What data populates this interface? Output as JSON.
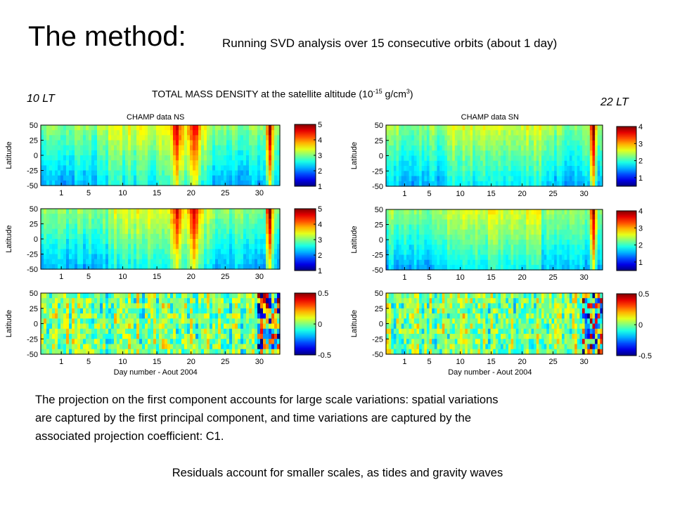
{
  "slide": {
    "title": "The method:",
    "subtitle": "Running SVD analysis over 15 consecutive orbits (about 1 day)",
    "left_label": "10 LT",
    "right_label": "22 LT",
    "center_title_main": "TOTAL MASS DENSITY at the satellite altitude (10",
    "center_title_exp": "-15",
    "center_title_unit": " g/cm",
    "center_title_unit_exp": "3",
    "center_title_close": ")",
    "body_line1": "The projection on the first component accounts for large scale variations: spatial variations",
    "body_line2": "are captured by the first principal component, and time variations are captured by the",
    "body_line3": "associated projection coefficient: C1.",
    "footer": "Residuals account for smaller scales, as tides and gravity waves"
  },
  "chart_data": [
    {
      "type": "heatmap",
      "panel_title": "CHAMP data NS",
      "ylabel": "Latitude",
      "xlabel": "",
      "x_ticks": [
        "1",
        "5",
        "10",
        "15",
        "20",
        "25",
        "30"
      ],
      "y_ticks": [
        "50",
        "25",
        "0",
        "-25",
        "-50"
      ],
      "xlim": [
        -2,
        33
      ],
      "ylim": [
        -50,
        50
      ],
      "colorbar_ticks": [
        "5",
        "4",
        "3",
        "2",
        "1"
      ],
      "clim": [
        1,
        5
      ],
      "hot_days": [
        18,
        20.5,
        31.5
      ],
      "kind": "density"
    },
    {
      "type": "heatmap",
      "panel_title": "",
      "ylabel": "Latitude",
      "xlabel": "",
      "x_ticks": [
        "1",
        "5",
        "10",
        "15",
        "20",
        "25",
        "30"
      ],
      "y_ticks": [
        "50",
        "25",
        "0",
        "-25",
        "-50"
      ],
      "xlim": [
        -2,
        33
      ],
      "ylim": [
        -50,
        50
      ],
      "colorbar_ticks": [
        "5",
        "4",
        "3",
        "2",
        "1"
      ],
      "clim": [
        1,
        5
      ],
      "hot_days": [
        18,
        20.5,
        31.5
      ],
      "kind": "density"
    },
    {
      "type": "heatmap",
      "panel_title": "",
      "ylabel": "Latitude",
      "xlabel": "Day number - Aout 2004",
      "x_ticks": [
        "1",
        "5",
        "10",
        "15",
        "20",
        "25",
        "30"
      ],
      "y_ticks": [
        "50",
        "25",
        "0",
        "-25",
        "-50"
      ],
      "xlim": [
        -2,
        33
      ],
      "ylim": [
        -50,
        50
      ],
      "colorbar_ticks": [
        "0.5",
        "0",
        "-0.5"
      ],
      "clim": [
        -0.5,
        0.5
      ],
      "hot_days": [],
      "kind": "residual"
    },
    {
      "type": "heatmap",
      "panel_title": "CHAMP data SN",
      "ylabel": "Latitude",
      "xlabel": "",
      "x_ticks": [
        "1",
        "5",
        "10",
        "15",
        "20",
        "25",
        "30"
      ],
      "y_ticks": [
        "50",
        "25",
        "0",
        "-25",
        "-50"
      ],
      "xlim": [
        -2,
        33
      ],
      "ylim": [
        -50,
        50
      ],
      "colorbar_ticks": [
        "4",
        "3",
        "2",
        "1"
      ],
      "clim": [
        0.5,
        4
      ],
      "hot_days": [
        31.5
      ],
      "kind": "density"
    },
    {
      "type": "heatmap",
      "panel_title": "",
      "ylabel": "Latitude",
      "xlabel": "",
      "x_ticks": [
        "1",
        "5",
        "10",
        "15",
        "20",
        "25",
        "30"
      ],
      "y_ticks": [
        "50",
        "25",
        "0",
        "-25",
        "-50"
      ],
      "xlim": [
        -2,
        33
      ],
      "ylim": [
        -50,
        50
      ],
      "colorbar_ticks": [
        "4",
        "3",
        "2",
        "1"
      ],
      "clim": [
        0.5,
        4
      ],
      "hot_days": [
        31.5
      ],
      "kind": "density"
    },
    {
      "type": "heatmap",
      "panel_title": "",
      "ylabel": "Latitude",
      "xlabel": "Day number - Aout 2004",
      "x_ticks": [
        "1",
        "5",
        "10",
        "15",
        "20",
        "25",
        "30"
      ],
      "y_ticks": [
        "50",
        "25",
        "0",
        "-25",
        "-50"
      ],
      "xlim": [
        -2,
        33
      ],
      "ylim": [
        -50,
        50
      ],
      "colorbar_ticks": [
        "0.5",
        "0",
        "-0.5"
      ],
      "clim": [
        -0.5,
        0.5
      ],
      "hot_days": [],
      "kind": "residual"
    }
  ]
}
